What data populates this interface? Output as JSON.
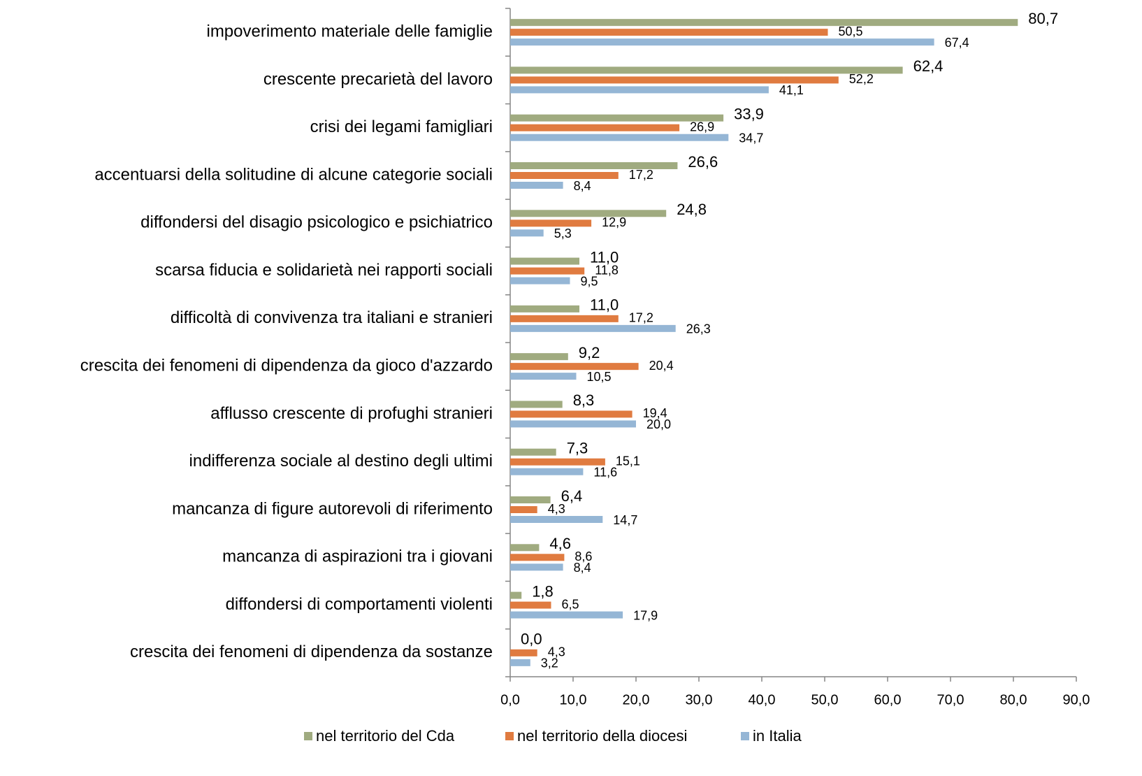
{
  "chart_data": {
    "type": "barh",
    "categories": [
      "impoverimento materiale delle famiglie",
      "crescente precarietà del lavoro",
      "crisi dei legami famigliari",
      "accentuarsi della solitudine di alcune categorie sociali",
      "diffondersi del disagio psicologico e psichiatrico",
      "scarsa fiducia e solidarietà nei rapporti sociali",
      "difficoltà di convivenza tra italiani e stranieri",
      "crescita dei fenomeni di dipendenza da gioco d'azzardo",
      "afflusso crescente di profughi stranieri",
      "indifferenza sociale al destino degli ultimi",
      "mancanza di figure autorevoli di riferimento",
      "mancanza di aspirazioni tra i giovani",
      "diffondersi di comportamenti violenti",
      "crescita dei fenomeni di dipendenza da sostanze"
    ],
    "series": [
      {
        "name": "nel territorio del Cda",
        "color": "#a0ab80",
        "values": [
          80.7,
          62.4,
          33.9,
          26.6,
          24.8,
          11.0,
          11.0,
          9.2,
          8.3,
          7.3,
          6.4,
          4.6,
          1.8,
          0.0
        ],
        "value_labels": [
          "80,7",
          "62,4",
          "33,9",
          "26,6",
          "24,8",
          "11,0",
          "11,0",
          "9,2",
          "8,3",
          "7,3",
          "6,4",
          "4,6",
          "1,8",
          "0,0"
        ]
      },
      {
        "name": "nel territorio della diocesi",
        "color": "#e07b40",
        "values": [
          50.5,
          52.2,
          26.9,
          17.2,
          12.9,
          11.8,
          17.2,
          20.4,
          19.4,
          15.1,
          4.3,
          8.6,
          6.5,
          4.3
        ],
        "value_labels": [
          "50,5",
          "52,2",
          "26,9",
          "17,2",
          "12,9",
          "11,8",
          "17,2",
          "20,4",
          "19,4",
          "15,1",
          "4,3",
          "8,6",
          "6,5",
          "4,3"
        ]
      },
      {
        "name": "in Italia",
        "color": "#95b6d5",
        "values": [
          67.4,
          41.1,
          34.7,
          8.4,
          5.3,
          9.5,
          26.3,
          10.5,
          20.0,
          11.6,
          14.7,
          8.4,
          17.9,
          3.2
        ],
        "value_labels": [
          "67,4",
          "41,1",
          "34,7",
          "8,4",
          "5,3",
          "9,5",
          "26,3",
          "10,5",
          "20,0",
          "11,6",
          "14,7",
          "8,4",
          "17,9",
          "3,2"
        ]
      }
    ],
    "xlim": [
      0,
      90
    ],
    "xticks": [
      {
        "value": 0,
        "label": "0,0"
      },
      {
        "value": 10,
        "label": "10,0"
      },
      {
        "value": 20,
        "label": "20,0"
      },
      {
        "value": 30,
        "label": "30,0"
      },
      {
        "value": 40,
        "label": "40,0"
      },
      {
        "value": 50,
        "label": "50,0"
      },
      {
        "value": 60,
        "label": "60,0"
      },
      {
        "value": 70,
        "label": "70,0"
      },
      {
        "value": 80,
        "label": "80,0"
      },
      {
        "value": 90,
        "label": "90,0"
      }
    ],
    "legend": "bottom"
  }
}
